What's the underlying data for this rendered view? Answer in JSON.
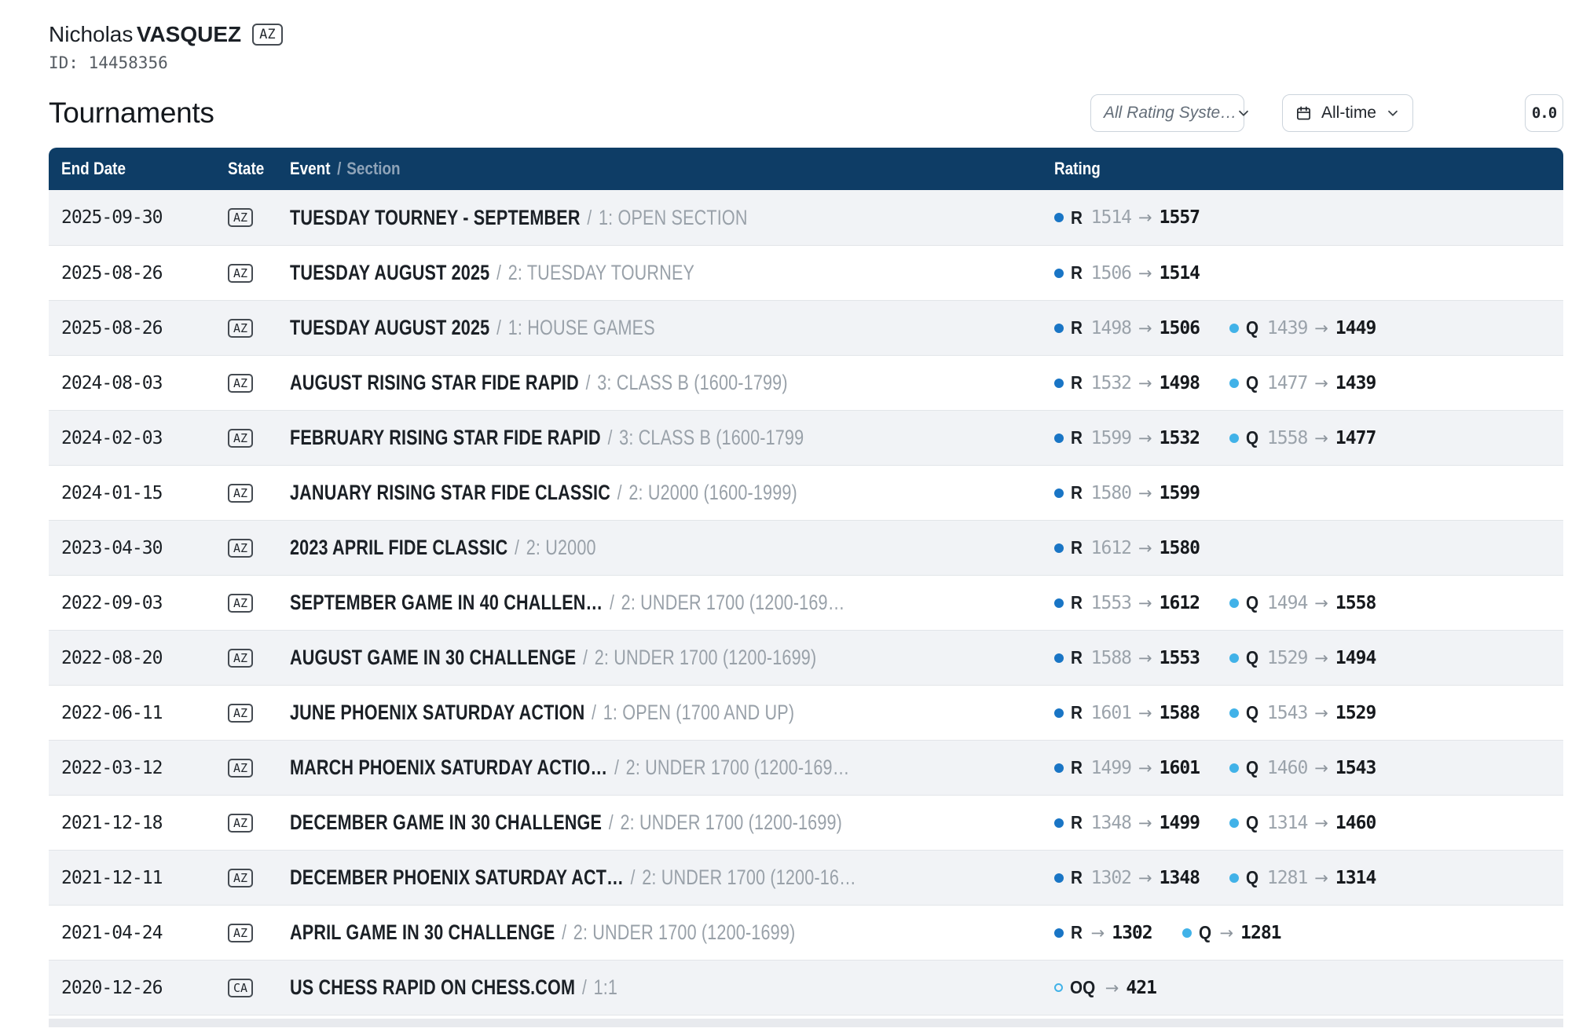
{
  "player": {
    "first_name": "Nicholas",
    "last_name": "VASQUEZ",
    "state_badge": "AZ",
    "id_label": "ID:",
    "id_value": "14458356"
  },
  "page": {
    "title": "Tournaments"
  },
  "filters": {
    "rating_system": "All Rating Syste…",
    "time_range": "All-time",
    "decimal_toggle": "0.0"
  },
  "table": {
    "headers": {
      "end_date": "End Date",
      "state": "State",
      "event": "Event",
      "separator": "/",
      "section": "Section",
      "rating": "Rating"
    },
    "separator": "/",
    "arrow": "→",
    "rows": [
      {
        "end_date": "2025-09-30",
        "state": "AZ",
        "event": "TUESDAY TOURNEY - SEPTEMBER",
        "section": "1: OPEN SECTION",
        "ratings": [
          {
            "dot": "r",
            "label": "R",
            "old": "1514",
            "new": "1557"
          }
        ]
      },
      {
        "end_date": "2025-08-26",
        "state": "AZ",
        "event": "TUESDAY AUGUST 2025",
        "section": "2: TUESDAY TOURNEY",
        "ratings": [
          {
            "dot": "r",
            "label": "R",
            "old": "1506",
            "new": "1514"
          }
        ]
      },
      {
        "end_date": "2025-08-26",
        "state": "AZ",
        "event": "TUESDAY AUGUST 2025",
        "section": "1: HOUSE GAMES",
        "ratings": [
          {
            "dot": "r",
            "label": "R",
            "old": "1498",
            "new": "1506"
          },
          {
            "dot": "q",
            "label": "Q",
            "old": "1439",
            "new": "1449"
          }
        ]
      },
      {
        "end_date": "2024-08-03",
        "state": "AZ",
        "event": "AUGUST RISING STAR FIDE RAPID",
        "section": "3: CLASS B (1600-1799)",
        "ratings": [
          {
            "dot": "r",
            "label": "R",
            "old": "1532",
            "new": "1498"
          },
          {
            "dot": "q",
            "label": "Q",
            "old": "1477",
            "new": "1439"
          }
        ]
      },
      {
        "end_date": "2024-02-03",
        "state": "AZ",
        "event": "FEBRUARY RISING STAR FIDE RAPID",
        "section": "3: CLASS B (1600-1799",
        "ratings": [
          {
            "dot": "r",
            "label": "R",
            "old": "1599",
            "new": "1532"
          },
          {
            "dot": "q",
            "label": "Q",
            "old": "1558",
            "new": "1477"
          }
        ]
      },
      {
        "end_date": "2024-01-15",
        "state": "AZ",
        "event": "JANUARY RISING STAR FIDE CLASSIC",
        "section": "2: U2000 (1600-1999)",
        "ratings": [
          {
            "dot": "r",
            "label": "R",
            "old": "1580",
            "new": "1599"
          }
        ]
      },
      {
        "end_date": "2023-04-30",
        "state": "AZ",
        "event": "2023 APRIL FIDE CLASSIC",
        "section": "2: U2000",
        "ratings": [
          {
            "dot": "r",
            "label": "R",
            "old": "1612",
            "new": "1580"
          }
        ]
      },
      {
        "end_date": "2022-09-03",
        "state": "AZ",
        "event": "SEPTEMBER GAME IN 40 CHALLEN…",
        "section": "2: UNDER 1700 (1200-169…",
        "ratings": [
          {
            "dot": "r",
            "label": "R",
            "old": "1553",
            "new": "1612"
          },
          {
            "dot": "q",
            "label": "Q",
            "old": "1494",
            "new": "1558"
          }
        ]
      },
      {
        "end_date": "2022-08-20",
        "state": "AZ",
        "event": "AUGUST GAME IN 30 CHALLENGE",
        "section": "2: UNDER 1700 (1200-1699)",
        "ratings": [
          {
            "dot": "r",
            "label": "R",
            "old": "1588",
            "new": "1553"
          },
          {
            "dot": "q",
            "label": "Q",
            "old": "1529",
            "new": "1494"
          }
        ]
      },
      {
        "end_date": "2022-06-11",
        "state": "AZ",
        "event": "JUNE PHOENIX SATURDAY ACTION",
        "section": "1: OPEN (1700 AND UP)",
        "ratings": [
          {
            "dot": "r",
            "label": "R",
            "old": "1601",
            "new": "1588"
          },
          {
            "dot": "q",
            "label": "Q",
            "old": "1543",
            "new": "1529"
          }
        ]
      },
      {
        "end_date": "2022-03-12",
        "state": "AZ",
        "event": "MARCH PHOENIX SATURDAY ACTIO…",
        "section": "2: UNDER 1700 (1200-169…",
        "ratings": [
          {
            "dot": "r",
            "label": "R",
            "old": "1499",
            "new": "1601"
          },
          {
            "dot": "q",
            "label": "Q",
            "old": "1460",
            "new": "1543"
          }
        ]
      },
      {
        "end_date": "2021-12-18",
        "state": "AZ",
        "event": "DECEMBER GAME IN 30 CHALLENGE",
        "section": "2: UNDER 1700 (1200-1699)",
        "ratings": [
          {
            "dot": "r",
            "label": "R",
            "old": "1348",
            "new": "1499"
          },
          {
            "dot": "q",
            "label": "Q",
            "old": "1314",
            "new": "1460"
          }
        ]
      },
      {
        "end_date": "2021-12-11",
        "state": "AZ",
        "event": "DECEMBER PHOENIX SATURDAY ACT…",
        "section": "2: UNDER 1700 (1200-16…",
        "ratings": [
          {
            "dot": "r",
            "label": "R",
            "old": "1302",
            "new": "1348"
          },
          {
            "dot": "q",
            "label": "Q",
            "old": "1281",
            "new": "1314"
          }
        ]
      },
      {
        "end_date": "2021-04-24",
        "state": "AZ",
        "event": "APRIL GAME IN 30 CHALLENGE",
        "section": "2: UNDER 1700 (1200-1699)",
        "ratings": [
          {
            "dot": "r",
            "label": "R",
            "old": "",
            "new": "1302"
          },
          {
            "dot": "q",
            "label": "Q",
            "old": "",
            "new": "1281"
          }
        ]
      },
      {
        "end_date": "2020-12-26",
        "state": "CA",
        "event": "US CHESS RAPID ON CHESS.COM",
        "section": "1:1",
        "ratings": [
          {
            "dot": "oq",
            "label": "OQ",
            "old": "",
            "new": "421"
          }
        ]
      }
    ]
  },
  "colors": {
    "navy": "#0e3d66",
    "row_alt": "#f1f3f6",
    "border": "#e2e5e9",
    "r_dot": "#1975c5",
    "q_dot": "#41b2e8",
    "muted": "#9ba3ab",
    "dark": "#171b20",
    "section_gray": "#99a1a9",
    "header_section": "#8ea3b8",
    "control_border": "#ccd4dc",
    "strip": "#e8eaee"
  }
}
